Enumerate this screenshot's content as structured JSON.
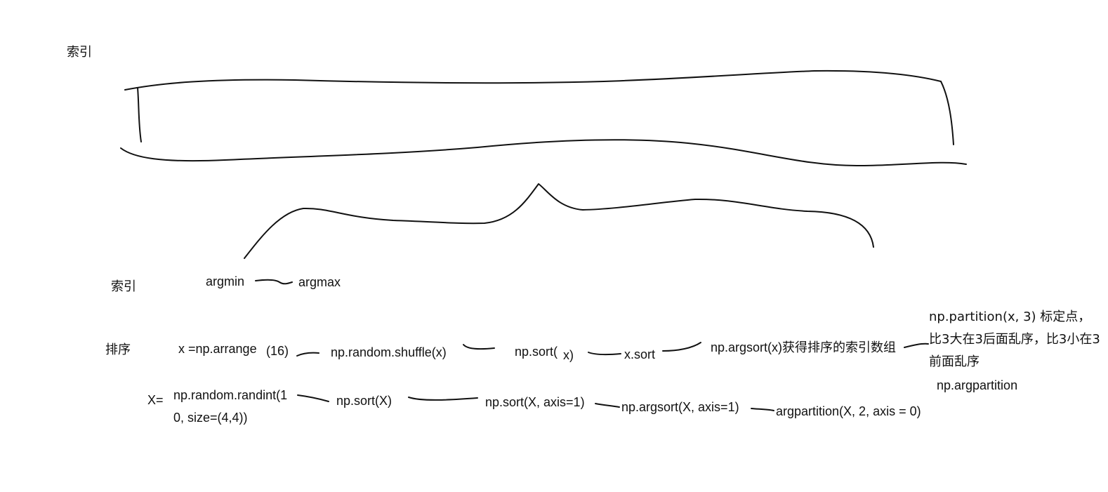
{
  "title": "索引",
  "tree": {
    "index_label": "索引",
    "index_funcs": {
      "argmin": "argmin",
      "argmax": "argmax"
    },
    "sort_label": "排序",
    "sort_chain": [
      "x =np.arrange",
      "(16)",
      "np.random.shuffle(x)",
      "np.sort(",
      "x)",
      "x.sort",
      "np.argsort(x)获得排序的索引数组"
    ],
    "partition_note": "np.partition(x, 3) 标定点，比3大在3后面乱序，比3小在3前面乱序",
    "argpartition": "np.argpartition",
    "matrix_label": "X=",
    "matrix_init_line1": "np.random.randint(1",
    "matrix_init_line2": "0, size=(4,4))",
    "matrix_chain": [
      "np.sort(X)",
      "np.sort(X, axis=1)",
      "np.argsort(X, axis=1)",
      "argpartition(X, 2, axis = 0)"
    ]
  }
}
